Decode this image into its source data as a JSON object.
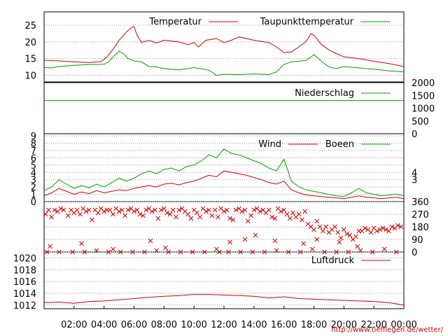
{
  "colors": {
    "red": "#d00000",
    "green": "#00a000",
    "grid": "#9a9a9a",
    "frame": "#000000"
  },
  "time_ticks": [
    "02:00",
    "04:00",
    "06:00",
    "08:00",
    "10:00",
    "12:00",
    "14:00",
    "16:00",
    "18:00",
    "20:00",
    "22:00",
    "00:00"
  ],
  "credit": "http://www.tiefflegen.de/wetter/",
  "chart_data": [
    {
      "type": "line",
      "panel": "temperature",
      "x_range": [
        0,
        24
      ],
      "ylim": [
        8,
        29
      ],
      "yticks": [
        10,
        15,
        20,
        25
      ],
      "legend": [
        "Temperatur",
        "Taupunkttemperatur"
      ],
      "series": [
        {
          "name": "Temperatur",
          "color": "#d00000",
          "x": [
            0,
            1,
            2,
            3,
            3.8,
            4.2,
            4.6,
            5,
            5.5,
            5.8,
            6,
            6.2,
            6.5,
            7,
            7.5,
            8,
            9,
            9.6,
            10,
            10.3,
            10.8,
            11.5,
            12,
            12.5,
            13,
            14,
            15,
            15.5,
            16,
            16.5,
            17,
            17.5,
            17.8,
            18,
            18.5,
            19,
            19.5,
            20,
            21,
            22,
            23,
            24
          ],
          "y": [
            14.5,
            14.3,
            14.0,
            13.8,
            14.1,
            15.5,
            17.8,
            20.5,
            23.0,
            24.2,
            24.6,
            22.0,
            19.8,
            20.5,
            19.7,
            20.5,
            20.0,
            19.2,
            19.8,
            18.5,
            20.5,
            21.0,
            19.8,
            20.5,
            21.5,
            20.5,
            19.8,
            18.5,
            16.8,
            17.0,
            18.5,
            20.2,
            22.5,
            22.0,
            19.2,
            17.6,
            16.5,
            15.5,
            15.0,
            14.2,
            13.5,
            12.6
          ]
        },
        {
          "name": "Taupunkttemperatur",
          "color": "#00a000",
          "x": [
            0,
            0.5,
            1,
            2,
            3,
            4,
            4.3,
            4.7,
            5,
            5.3,
            5.6,
            6,
            6.5,
            7,
            7.5,
            8,
            9,
            10,
            11,
            11.5,
            12,
            13,
            14,
            15,
            15.5,
            16,
            16.5,
            17,
            17.5,
            18,
            18.5,
            19,
            19.5,
            20,
            21,
            22,
            23,
            24
          ],
          "y": [
            12.3,
            12.2,
            12.6,
            13.0,
            13.2,
            13.3,
            14.0,
            16.0,
            17.2,
            16.5,
            15.0,
            14.3,
            14.0,
            12.6,
            12.5,
            12.0,
            11.6,
            12.3,
            11.5,
            10.0,
            10.3,
            10.2,
            10.4,
            10.2,
            11.0,
            13.2,
            14.0,
            14.2,
            14.5,
            16.2,
            14.2,
            12.5,
            12.0,
            12.6,
            12.2,
            11.8,
            11.3,
            11.0
          ]
        }
      ]
    },
    {
      "type": "line",
      "panel": "precipitation",
      "x_range": [
        0,
        24
      ],
      "ylim": [
        0,
        2000
      ],
      "yticks": [
        0,
        500,
        1000,
        1500,
        2000
      ],
      "legend": [
        "Niederschlag"
      ],
      "series": [
        {
          "name": "Niederschlag",
          "color": "#00a000",
          "x": [
            0,
            24
          ],
          "y": [
            1300,
            1300
          ]
        }
      ]
    },
    {
      "type": "line",
      "panel": "wind",
      "x_range": [
        0,
        24
      ],
      "ylim": [
        0,
        9.2
      ],
      "yticks": [
        0,
        1,
        2,
        3,
        4,
        5,
        6,
        7,
        8,
        9
      ],
      "right_yticks": [
        3,
        4
      ],
      "legend": [
        "Wind",
        "Boeen"
      ],
      "series": [
        {
          "name": "Wind",
          "color": "#d00000",
          "x": [
            0,
            0.5,
            1,
            1.5,
            2,
            2.5,
            3,
            3.5,
            4,
            4.5,
            5,
            5.5,
            6,
            6.5,
            7,
            7.5,
            8,
            8.5,
            9,
            9.5,
            10,
            10.5,
            11,
            11.5,
            12,
            12.5,
            13,
            13.5,
            14,
            14.5,
            15,
            15.5,
            16,
            16.5,
            17,
            17.5,
            18,
            18.5,
            19,
            19.5,
            20,
            20.5,
            21,
            21.5,
            22,
            22.5,
            23,
            23.5,
            24
          ],
          "y": [
            0.8,
            1.2,
            1.8,
            1.4,
            1.0,
            1.3,
            1.1,
            1.5,
            1.2,
            1.4,
            1.6,
            1.5,
            1.8,
            2.0,
            2.2,
            2.0,
            2.4,
            2.5,
            2.3,
            2.6,
            2.8,
            3.2,
            3.6,
            3.4,
            4.2,
            4.0,
            3.8,
            3.6,
            3.3,
            3.0,
            2.6,
            2.4,
            2.8,
            1.6,
            1.2,
            0.9,
            0.8,
            0.7,
            0.6,
            0.5,
            0.4,
            0.6,
            0.8,
            0.6,
            0.5,
            0.4,
            0.5,
            0.6,
            0.4
          ]
        },
        {
          "name": "Boeen",
          "color": "#00a000",
          "x": [
            0,
            0.5,
            1,
            1.5,
            2,
            2.5,
            3,
            3.5,
            4,
            4.5,
            5,
            5.5,
            6,
            6.5,
            7,
            7.5,
            8,
            8.5,
            9,
            9.5,
            10,
            10.5,
            11,
            11.5,
            12,
            12.5,
            13,
            13.5,
            14,
            14.5,
            15,
            15.5,
            16,
            16.5,
            17,
            17.5,
            18,
            18.5,
            19,
            19.5,
            20,
            20.5,
            21,
            21.5,
            22,
            22.5,
            23,
            23.5,
            24
          ],
          "y": [
            1.5,
            2.0,
            3.0,
            2.4,
            1.8,
            2.2,
            1.9,
            2.4,
            2.0,
            2.6,
            3.2,
            2.8,
            3.2,
            3.8,
            4.2,
            3.8,
            4.4,
            4.6,
            4.2,
            4.8,
            5.0,
            5.6,
            6.4,
            6.0,
            7.2,
            6.6,
            6.4,
            6.0,
            5.6,
            5.2,
            4.6,
            4.2,
            5.8,
            2.8,
            2.0,
            1.6,
            1.4,
            1.2,
            1.0,
            0.8,
            0.7,
            1.2,
            1.8,
            1.2,
            1.0,
            0.8,
            0.9,
            1.0,
            0.8
          ]
        }
      ]
    },
    {
      "type": "scatter",
      "panel": "wind_direction",
      "x_range": [
        0,
        24
      ],
      "ylim": [
        0,
        360
      ],
      "right_yticks": [
        0,
        90,
        180,
        270,
        360
      ],
      "series": [
        {
          "name": "",
          "color": "#d00000",
          "x": [
            0.1,
            0.3,
            0.5,
            0.7,
            0.9,
            1.1,
            1.3,
            1.6,
            1.8,
            2.0,
            2.2,
            2.4,
            2.6,
            2.8,
            3.0,
            3.2,
            3.4,
            3.6,
            3.8,
            4.0,
            4.2,
            4.4,
            4.6,
            4.8,
            5.0,
            5.2,
            5.4,
            5.6,
            5.8,
            6.0,
            6.2,
            6.4,
            6.6,
            6.8,
            7.0,
            7.2,
            7.4,
            7.6,
            7.8,
            8.0,
            8.2,
            8.4,
            8.6,
            8.8,
            9.0,
            9.2,
            9.4,
            9.6,
            9.8,
            10.0,
            10.2,
            10.4,
            10.6,
            10.8,
            11.0,
            11.2,
            11.4,
            11.6,
            11.8,
            12.0,
            12.2,
            12.4,
            12.6,
            12.8,
            13.0,
            13.2,
            13.4,
            13.6,
            13.8,
            14.0,
            14.2,
            14.4,
            14.6,
            14.8,
            15.0,
            15.2,
            15.4,
            15.6,
            15.8,
            16.0,
            16.2,
            16.4,
            16.6,
            16.8,
            17.0,
            17.2,
            17.4,
            17.6,
            17.8,
            18.0,
            18.2,
            18.4,
            18.6,
            18.8,
            19.0,
            19.2,
            19.4,
            19.6,
            19.8,
            20.0,
            20.2,
            20.4,
            20.6,
            20.8,
            21.0,
            21.2,
            21.4,
            21.6,
            21.8,
            22.0,
            22.2,
            22.4,
            22.6,
            22.8,
            23.0,
            23.2,
            23.4,
            23.6,
            23.8,
            0.2,
            1.0,
            1.9,
            2.7,
            3.5,
            4.3,
            5.1,
            5.9,
            6.7,
            7.5,
            8.3,
            9.1,
            9.9,
            10.7,
            11.5,
            12.3,
            13.1,
            13.9,
            14.7,
            15.5,
            16.3,
            17.1,
            17.9,
            18.7,
            19.5,
            20.3,
            21.1,
            21.9,
            22.7,
            23.5,
            0.4,
            2.5,
            4.6,
            7.1,
            8.1,
            11.7,
            12.4,
            13.4,
            14.1,
            15.4,
            17.3,
            18.2,
            19.7,
            20.9
          ],
          "y": [
            270,
            300,
            250,
            300,
            290,
            310,
            300,
            260,
            300,
            280,
            300,
            270,
            310,
            290,
            300,
            230,
            300,
            280,
            310,
            290,
            300,
            300,
            270,
            310,
            290,
            300,
            260,
            300,
            310,
            290,
            300,
            270,
            260,
            300,
            310,
            290,
            300,
            240,
            300,
            310,
            280,
            270,
            300,
            250,
            300,
            310,
            290,
            270,
            240,
            300,
            280,
            250,
            310,
            290,
            300,
            260,
            300,
            250,
            310,
            290,
            300,
            240,
            230,
            300,
            310,
            290,
            300,
            220,
            260,
            300,
            310,
            290,
            300,
            280,
            300,
            250,
            240,
            310,
            290,
            300,
            270,
            240,
            280,
            250,
            270,
            230,
            290,
            200,
            180,
            160,
            220,
            180,
            150,
            180,
            140,
            160,
            180,
            140,
            100,
            160,
            130,
            120,
            90,
            110,
            150,
            150,
            170,
            160,
            140,
            170,
            150,
            160,
            170,
            160,
            150,
            180,
            170,
            190,
            180,
            0,
            0,
            0,
            0,
            10,
            0,
            0,
            0,
            0,
            10,
            0,
            0,
            0,
            0,
            20,
            0,
            0,
            0,
            0,
            10,
            0,
            0,
            20,
            0,
            0,
            0,
            10,
            0,
            20,
            0,
            40,
            60,
            20,
            80,
            30,
            0,
            70,
            90,
            120,
            80,
            60,
            90,
            70,
            40
          ]
        }
      ]
    },
    {
      "type": "line",
      "panel": "pressure",
      "x_range": [
        0,
        24
      ],
      "ylim": [
        1011.5,
        1021
      ],
      "yticks": [
        1012,
        1014,
        1016,
        1018,
        1020
      ],
      "legend": [
        "Luftdruck"
      ],
      "series": [
        {
          "name": "Luftdruck",
          "color": "#d00000",
          "x": [
            0,
            1,
            2,
            3,
            4,
            5,
            6,
            7,
            8,
            9,
            10,
            11,
            12,
            13,
            14,
            15,
            16,
            17,
            18,
            19,
            20,
            21,
            22,
            23,
            24
          ],
          "y": [
            1012.4,
            1012.5,
            1012.3,
            1012.6,
            1012.7,
            1012.9,
            1013.1,
            1013.3,
            1013.5,
            1013.6,
            1013.8,
            1013.8,
            1013.7,
            1013.6,
            1013.5,
            1013.2,
            1013.4,
            1013.1,
            1013.0,
            1012.9,
            1012.8,
            1012.7,
            1012.6,
            1012.4,
            1012.0
          ]
        }
      ]
    }
  ]
}
